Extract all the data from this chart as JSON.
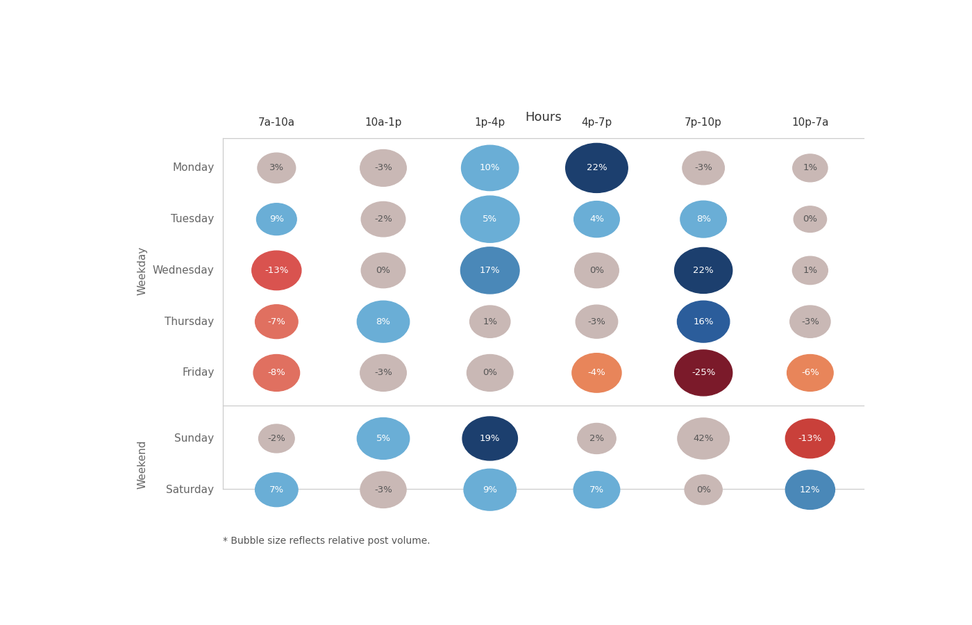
{
  "title": "Hours",
  "col_labels": [
    "7a-10a",
    "10a-1p",
    "1p-4p",
    "4p-7p",
    "7p-10p",
    "10p-7a"
  ],
  "row_labels": [
    "Monday",
    "Tuesday",
    "Wednesday",
    "Thursday",
    "Friday",
    "Sunday",
    "Saturday"
  ],
  "weekday_label": "Weekday",
  "weekend_label": "Weekend",
  "footnote": "* Bubble size reflects relative post volume.",
  "values": [
    [
      3,
      -3,
      10,
      22,
      -3,
      1
    ],
    [
      9,
      -2,
      5,
      4,
      8,
      0
    ],
    [
      -13,
      0,
      17,
      0,
      22,
      1
    ],
    [
      -7,
      8,
      1,
      -3,
      16,
      -3
    ],
    [
      -8,
      -3,
      0,
      -4,
      -25,
      -6
    ],
    [
      -2,
      5,
      19,
      2,
      42,
      -13
    ],
    [
      7,
      -3,
      9,
      7,
      0,
      12
    ]
  ],
  "bubble_sizes": [
    [
      300,
      520,
      900,
      1100,
      400,
      230
    ],
    [
      350,
      460,
      960,
      500,
      520,
      190
    ],
    [
      620,
      460,
      960,
      460,
      920,
      240
    ],
    [
      420,
      720,
      360,
      400,
      720,
      360
    ],
    [
      520,
      520,
      520,
      620,
      920,
      520
    ],
    [
      250,
      720,
      820,
      310,
      700,
      620
    ],
    [
      420,
      510,
      720,
      520,
      290,
      620
    ]
  ],
  "colors": [
    [
      "#c9b8b5",
      "#c9b8b5",
      "#6aaed6",
      "#1c3f6e",
      "#c9b8b5",
      "#c9b8b5"
    ],
    [
      "#6aaed6",
      "#c9b8b5",
      "#6aaed6",
      "#6aaed6",
      "#6aaed6",
      "#c9b8b5"
    ],
    [
      "#d9534f",
      "#c9b8b5",
      "#4a88b8",
      "#c9b8b5",
      "#1c3f6e",
      "#c9b8b5"
    ],
    [
      "#e07060",
      "#6aaed6",
      "#c9b8b5",
      "#c9b8b5",
      "#2b5d9b",
      "#c9b8b5"
    ],
    [
      "#e07060",
      "#c9b8b5",
      "#c9b8b5",
      "#e8855a",
      "#7b1a2a",
      "#e8855a"
    ],
    [
      "#c9b8b5",
      "#6aaed6",
      "#1c3f6e",
      "#c9b8b5",
      "#c9b8b5",
      "#c9403a"
    ],
    [
      "#6aaed6",
      "#c9b8b5",
      "#6aaed6",
      "#6aaed6",
      "#c9b8b5",
      "#4a88b8"
    ]
  ],
  "text_colors": [
    [
      "#555555",
      "#555555",
      "#ffffff",
      "#ffffff",
      "#555555",
      "#555555"
    ],
    [
      "#ffffff",
      "#555555",
      "#ffffff",
      "#ffffff",
      "#ffffff",
      "#555555"
    ],
    [
      "#ffffff",
      "#555555",
      "#ffffff",
      "#555555",
      "#ffffff",
      "#555555"
    ],
    [
      "#ffffff",
      "#ffffff",
      "#555555",
      "#555555",
      "#ffffff",
      "#555555"
    ],
    [
      "#ffffff",
      "#555555",
      "#555555",
      "#ffffff",
      "#ffffff",
      "#ffffff"
    ],
    [
      "#555555",
      "#ffffff",
      "#ffffff",
      "#555555",
      "#555555",
      "#ffffff"
    ],
    [
      "#ffffff",
      "#555555",
      "#ffffff",
      "#ffffff",
      "#555555",
      "#ffffff"
    ]
  ],
  "bg_color": "#ffffff",
  "grid_color": "#cccccc",
  "weekday_count": 5,
  "weekend_count": 2
}
